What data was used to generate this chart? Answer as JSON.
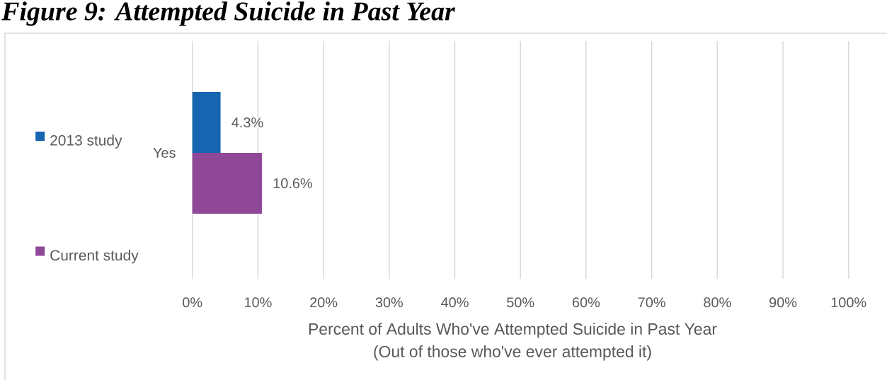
{
  "chart_data": {
    "type": "bar",
    "orientation": "horizontal",
    "title": "Figure 9: Attempted Suicide in Past Year",
    "xlabel": "Percent of Adults Who've Attempted Suicide in Past Year (Out of those who've ever attempted it)",
    "categories": [
      "Yes"
    ],
    "series": [
      {
        "name": "2013 study",
        "color": "#1565b0",
        "values": [
          4.3
        ],
        "value_labels": [
          "4.3%"
        ]
      },
      {
        "name": "Current study",
        "color": "#8f4797",
        "values": [
          10.6
        ],
        "value_labels": [
          "10.6%"
        ]
      }
    ],
    "xlim": [
      0,
      100
    ],
    "xticks": [
      {
        "value": 0,
        "label": "0%"
      },
      {
        "value": 10,
        "label": "10%"
      },
      {
        "value": 20,
        "label": "20%"
      },
      {
        "value": 30,
        "label": "30%"
      },
      {
        "value": 40,
        "label": "40%"
      },
      {
        "value": 50,
        "label": "50%"
      },
      {
        "value": 60,
        "label": "60%"
      },
      {
        "value": 70,
        "label": "70%"
      },
      {
        "value": 80,
        "label": "80%"
      },
      {
        "value": 90,
        "label": "90%"
      },
      {
        "value": 100,
        "label": "100%"
      }
    ],
    "grid": "x",
    "legend": "left"
  }
}
